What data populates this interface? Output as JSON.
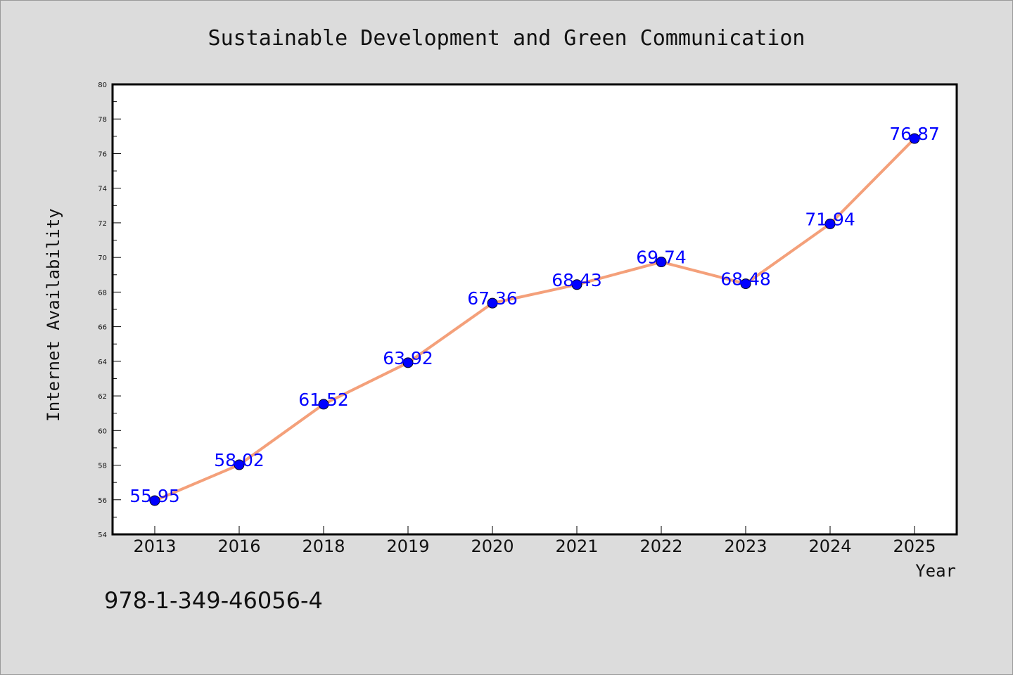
{
  "chart_data": {
    "type": "line",
    "title": "Sustainable Development and Green Communication",
    "xlabel": "Year",
    "ylabel": "Internet Availability",
    "categories": [
      "2013",
      "2016",
      "2018",
      "2019",
      "2020",
      "2021",
      "2022",
      "2023",
      "2024",
      "2025"
    ],
    "series": [
      {
        "values": [
          55.95,
          58.02,
          61.52,
          63.92,
          67.36,
          68.43,
          69.74,
          68.48,
          71.94,
          76.87
        ],
        "labels": [
          "55.95",
          "58.02",
          "61.52",
          "63.92",
          "67.36",
          "68.43",
          "69.74",
          "68.48",
          "71.94",
          "76.87"
        ]
      }
    ],
    "ylim": [
      54,
      80
    ],
    "yticks": [
      "54",
      "56",
      "58",
      "60",
      "62",
      "64",
      "66",
      "68",
      "70",
      "72",
      "74",
      "76",
      "78",
      "80"
    ],
    "grid": false,
    "legend": "none"
  },
  "annotation": {
    "isbn": "978-1-349-46056-4"
  },
  "colors": {
    "background": "#dcdcdc",
    "plot_background": "#ffffff",
    "line": "#f4a07a",
    "marker": "#0000ff",
    "data_label": "#0000ff"
  }
}
